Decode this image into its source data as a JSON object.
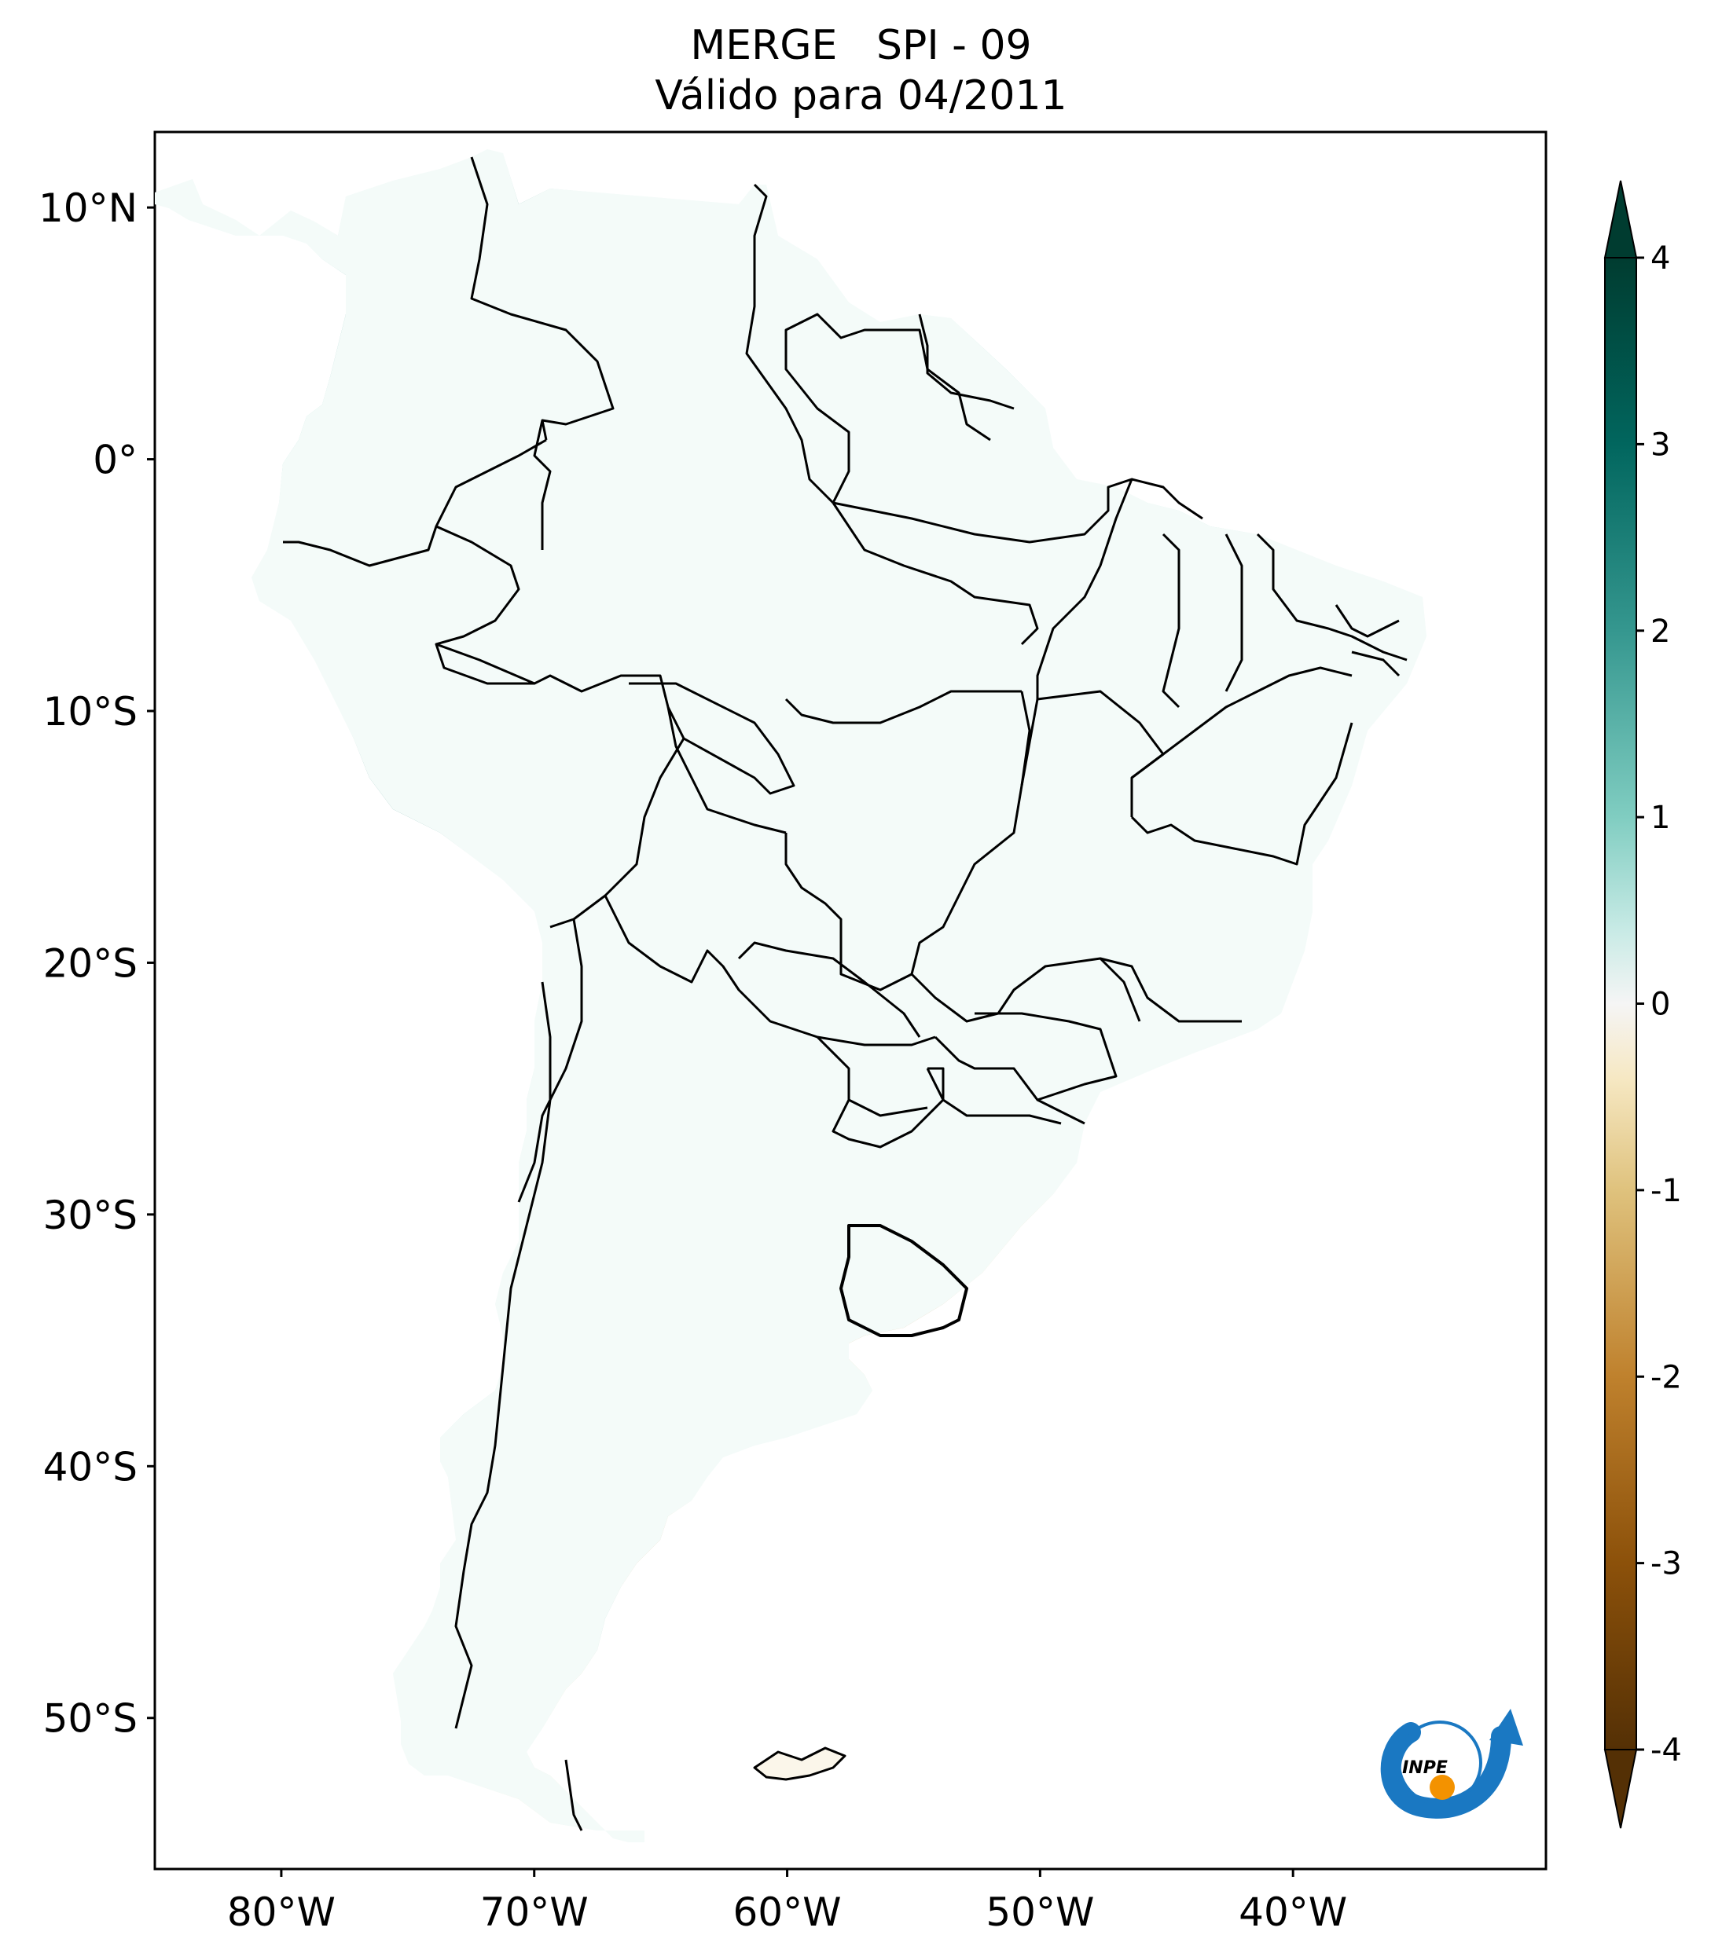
{
  "title": {
    "line1": "MERGE   SPI - 09",
    "line2": "Válido para 04/2011"
  },
  "map": {
    "lon_range": [
      -85,
      -30
    ],
    "lat_range": [
      -56,
      13
    ],
    "lon_ticks": [
      {
        "value": -80,
        "label": "80°W"
      },
      {
        "value": -70,
        "label": "70°W"
      },
      {
        "value": -60,
        "label": "60°W"
      },
      {
        "value": -50,
        "label": "50°W"
      },
      {
        "value": -40,
        "label": "40°W"
      }
    ],
    "lat_ticks": [
      {
        "value": 10,
        "label": "10°N"
      },
      {
        "value": 0,
        "label": "0°"
      },
      {
        "value": -10,
        "label": "10°S"
      },
      {
        "value": -20,
        "label": "20°S"
      },
      {
        "value": -30,
        "label": "30°S"
      },
      {
        "value": -40,
        "label": "40°S"
      },
      {
        "value": -50,
        "label": "50°S"
      }
    ]
  },
  "colorbar": {
    "range": [
      -4,
      4
    ],
    "ticks": [
      {
        "value": 4,
        "label": "4"
      },
      {
        "value": 3,
        "label": "3"
      },
      {
        "value": 2,
        "label": "2"
      },
      {
        "value": 1,
        "label": "1"
      },
      {
        "value": 0,
        "label": "0"
      },
      {
        "value": -1,
        "label": "-1"
      },
      {
        "value": -2,
        "label": "-2"
      },
      {
        "value": -3,
        "label": "-3"
      },
      {
        "value": -4,
        "label": "-4"
      }
    ],
    "colors": {
      "extreme_wet": "#003c30",
      "wet_3": "#01665e",
      "wet_2": "#35978f",
      "wet_1": "#80cdc1",
      "wet_0": "#c7eae5",
      "neutral": "#f5f5f5",
      "dry_0": "#f6e8c3",
      "dry_1": "#dfc27d",
      "dry_2": "#bf812d",
      "dry_3": "#8c510a",
      "extreme_dry": "#543005"
    }
  },
  "logo": {
    "text": "INPE",
    "colors": {
      "arc": "#1a78c2",
      "dot": "#f39200"
    }
  }
}
